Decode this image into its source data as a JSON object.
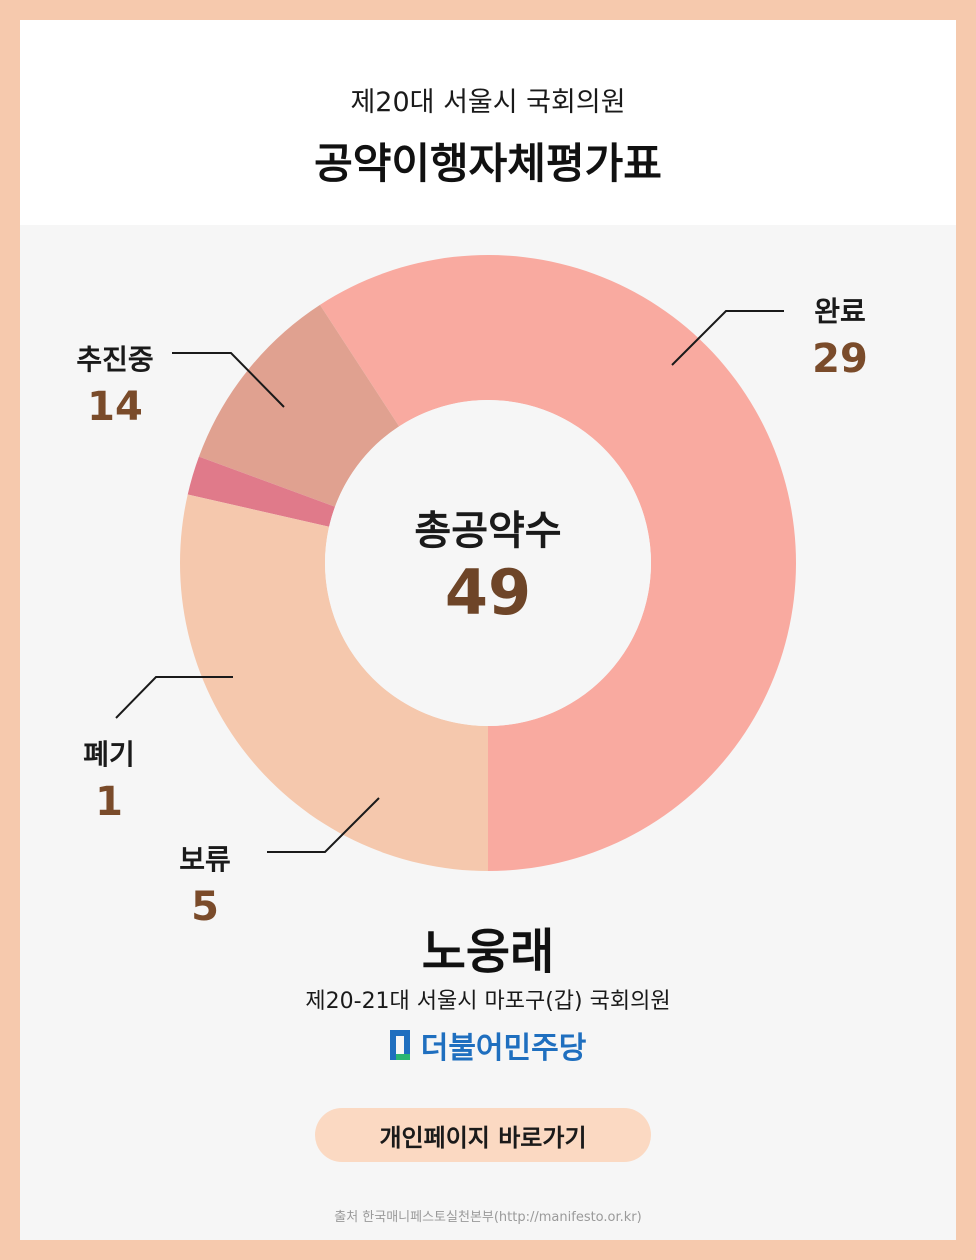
{
  "header": {
    "subtitle": "제20대 서울시 국회의원",
    "title": "공약이행자체평가표"
  },
  "chart_data": {
    "type": "pie",
    "donut": true,
    "center_label": "총공약수",
    "total": 49,
    "series": [
      {
        "name": "완료",
        "value": 29,
        "color": "#f9aaa0"
      },
      {
        "name": "보류",
        "value": 5,
        "color": "#e0a190"
      },
      {
        "name": "폐기",
        "value": 1,
        "color": "#e07a8a"
      },
      {
        "name": "추진중",
        "value": 14,
        "color": "#f5c8ad"
      }
    ]
  },
  "profile": {
    "name": "노웅래",
    "role": "제20-21대 서울시 마포구(갑) 국회의원",
    "party": "더불어민주당"
  },
  "link_button": "개인페이지 바로가기",
  "source": "출처 한국매니페스토실천본부(http://manifesto.or.kr)",
  "colors": {
    "border": "#f6c9ad",
    "value_text": "#7a4b2a",
    "party_blue": "#1f6fbf",
    "party_green": "#2bb673"
  }
}
